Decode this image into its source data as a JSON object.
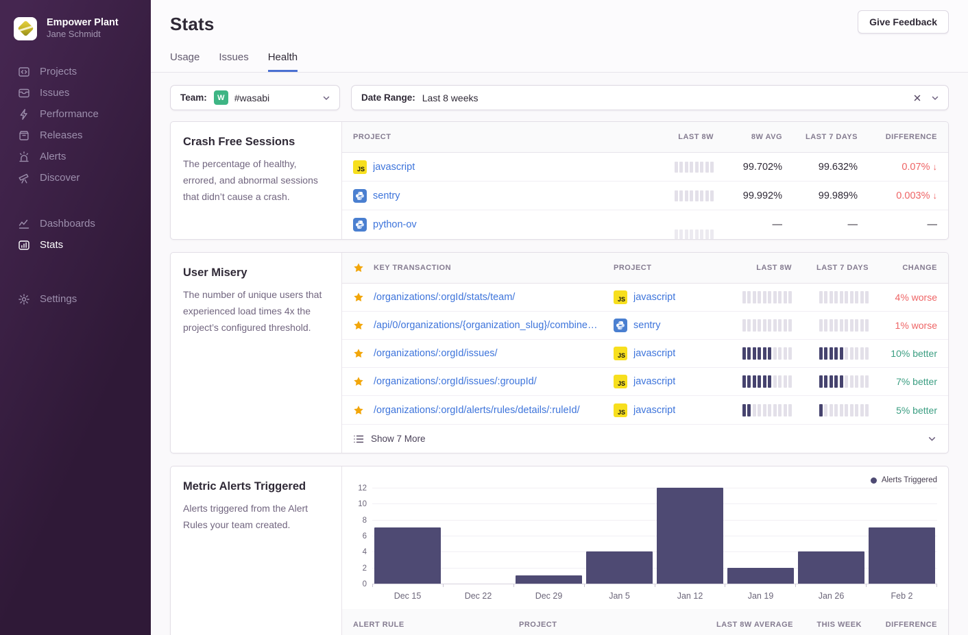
{
  "colors": {
    "accent_blue": "#4a70d2",
    "link_blue": "#3d74db",
    "negative_red": "#ee6465",
    "positive_green": "#3b9e82",
    "chart_bar": "#4e4a73",
    "star_gold": "#f2a60a",
    "js_yellow": "#f7df1e",
    "python_blue": "#4a7fd0",
    "team_avatar_green": "#3eb584",
    "sidebar_purple": "#2f1937"
  },
  "sidebar": {
    "org_name": "Empower Plant",
    "user_name": "Jane Schmidt",
    "groups": [
      [
        {
          "label": "Projects",
          "icon": "projects-icon"
        },
        {
          "label": "Issues",
          "icon": "issues-icon"
        },
        {
          "label": "Performance",
          "icon": "performance-icon"
        },
        {
          "label": "Releases",
          "icon": "releases-icon"
        },
        {
          "label": "Alerts",
          "icon": "alerts-icon"
        },
        {
          "label": "Discover",
          "icon": "discover-icon"
        }
      ],
      [
        {
          "label": "Dashboards",
          "icon": "dashboards-icon"
        },
        {
          "label": "Stats",
          "icon": "stats-icon",
          "active": true
        }
      ],
      [
        {
          "label": "Settings",
          "icon": "settings-icon"
        }
      ]
    ]
  },
  "header": {
    "title": "Stats",
    "feedback_label": "Give Feedback",
    "tabs": [
      {
        "label": "Usage",
        "active": false
      },
      {
        "label": "Issues",
        "active": false
      },
      {
        "label": "Health",
        "active": true
      }
    ]
  },
  "filters": {
    "team_label": "Team:",
    "team_avatar_letter": "W",
    "team_value": "#wasabi",
    "date_label": "Date Range:",
    "date_value": "Last 8 weeks"
  },
  "crash_free": {
    "title": "Crash Free Sessions",
    "description": "The percentage of healthy, errored, and abnormal sessions that didn’t cause a crash.",
    "columns": [
      "Project",
      "Last 8W",
      "8W Avg",
      "Last 7 Days",
      "Difference"
    ],
    "rows": [
      {
        "project": "javascript",
        "platform": "javascript",
        "spark_bars": 8,
        "spark_filled": 0,
        "spark_style": "light",
        "avg_8w": "99.702%",
        "last_7d": "99.632%",
        "difference": "0.07%",
        "trend": "down"
      },
      {
        "project": "sentry",
        "platform": "python",
        "spark_bars": 8,
        "spark_filled": 0,
        "spark_style": "light",
        "avg_8w": "99.992%",
        "last_7d": "99.989%",
        "difference": "0.003%",
        "trend": "down"
      },
      {
        "project": "python-ov",
        "platform": "python",
        "spark_bars": 8,
        "spark_filled": 0,
        "spark_style": "faint",
        "avg_8w": "—",
        "last_7d": "—",
        "difference": "—",
        "trend": "none"
      }
    ]
  },
  "user_misery": {
    "title": "User Misery",
    "description": "The number of unique users that experienced load times 4x the project’s configured threshold.",
    "columns": [
      "Key Transaction",
      "Project",
      "Last 8W",
      "Last 7 Days",
      "Change"
    ],
    "rows": [
      {
        "transaction": "/organizations/:orgId/stats/team/",
        "project": "javascript",
        "platform": "javascript",
        "bars": 10,
        "last8w_filled": 0,
        "last7d_filled": 0,
        "change": "4% worse",
        "direction": "worse"
      },
      {
        "transaction": "/api/0/organizations/{organization_slug}/combine…",
        "project": "sentry",
        "platform": "python",
        "bars": 10,
        "last8w_filled": 0,
        "last7d_filled": 0,
        "change": "1% worse",
        "direction": "worse"
      },
      {
        "transaction": "/organizations/:orgId/issues/",
        "project": "javascript",
        "platform": "javascript",
        "bars": 10,
        "last8w_filled": 6,
        "last7d_filled": 5,
        "change": "10% better",
        "direction": "better"
      },
      {
        "transaction": "/organizations/:orgId/issues/:groupId/",
        "project": "javascript",
        "platform": "javascript",
        "bars": 10,
        "last8w_filled": 6,
        "last7d_filled": 5,
        "change": "7% better",
        "direction": "better"
      },
      {
        "transaction": "/organizations/:orgId/alerts/rules/details/:ruleId/",
        "project": "javascript",
        "platform": "javascript",
        "bars": 10,
        "last8w_filled": 2,
        "last7d_filled": 1,
        "change": "5% better",
        "direction": "better"
      }
    ],
    "show_more_label": "Show 7 More"
  },
  "metric_alerts": {
    "title": "Metric Alerts Triggered",
    "description": "Alerts triggered from the Alert Rules your team created.",
    "table_columns": [
      "Alert Rule",
      "Project",
      "Last 8W Average",
      "This Week",
      "Difference"
    ]
  },
  "chart_data": {
    "type": "bar",
    "title": "Metric Alerts Triggered",
    "categories": [
      "Dec 15",
      "Dec 22",
      "Dec 29",
      "Jan 5",
      "Jan 12",
      "Jan 19",
      "Jan 26",
      "Feb 2"
    ],
    "values": [
      7,
      0,
      1,
      4,
      12,
      2,
      4,
      7
    ],
    "series_name": "Alerts Triggered",
    "legend": [
      "Alerts Triggered"
    ],
    "legend_position": "top-right",
    "xlabel": "",
    "ylabel": "",
    "yticks": [
      0,
      2,
      4,
      6,
      8,
      10,
      12
    ],
    "ylim": [
      0,
      12
    ],
    "grid": true,
    "bar_color": "#4e4a73"
  }
}
